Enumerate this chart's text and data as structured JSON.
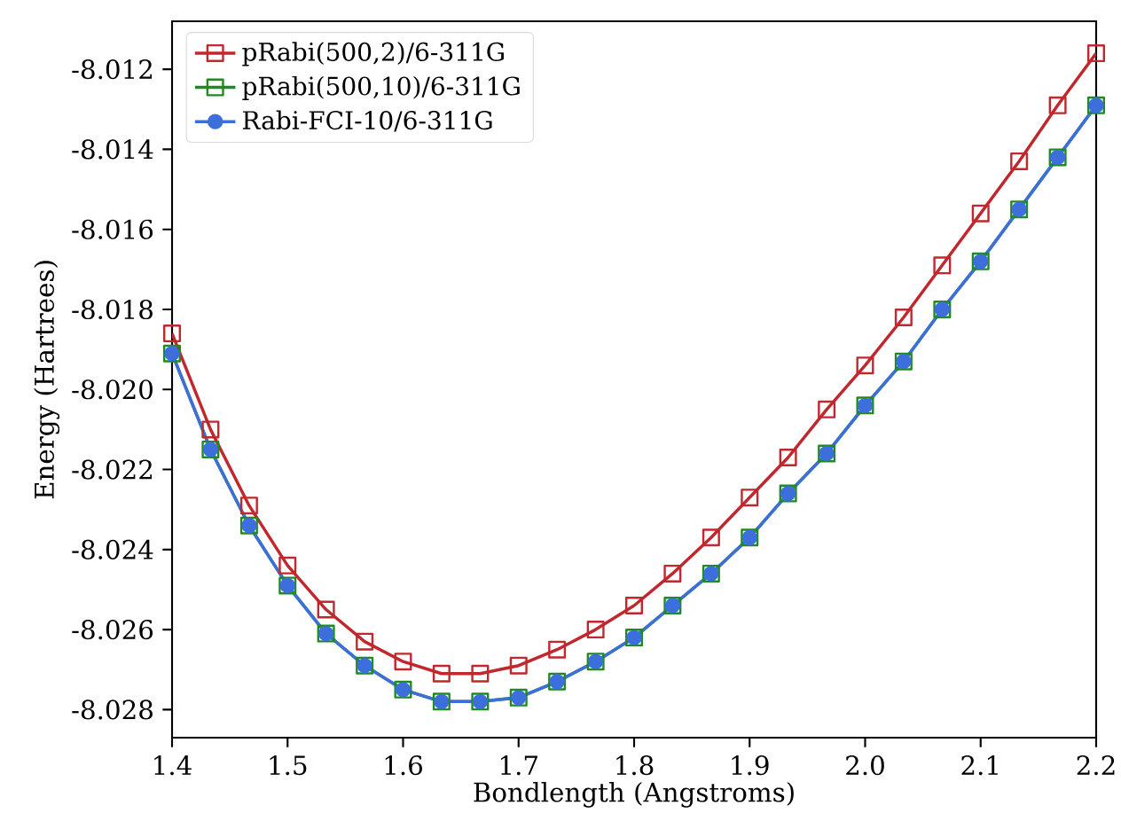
{
  "chart_data": {
    "type": "line",
    "xlabel": "Bondlength (Angstroms)",
    "ylabel": "Energy (Hartrees)",
    "x": [
      1.4,
      1.4333,
      1.4667,
      1.5,
      1.5333,
      1.5667,
      1.6,
      1.6333,
      1.6667,
      1.7,
      1.7333,
      1.7667,
      1.8,
      1.8333,
      1.8667,
      1.9,
      1.9333,
      1.9667,
      2.0,
      2.0333,
      2.0667,
      2.1,
      2.1333,
      2.1667,
      2.2
    ],
    "series": [
      {
        "name": "pRabi(500,2)/6-311G",
        "color": "#c0282d",
        "marker": "square",
        "values": [
          -8.0186,
          -8.021,
          -8.0229,
          -8.0244,
          -8.0255,
          -8.0263,
          -8.0268,
          -8.0271,
          -8.0271,
          -8.0269,
          -8.0265,
          -8.026,
          -8.0254,
          -8.0246,
          -8.0237,
          -8.0227,
          -8.0217,
          -8.0205,
          -8.0194,
          -8.0182,
          -8.0169,
          -8.0156,
          -8.0143,
          -8.0129,
          -8.0116
        ]
      },
      {
        "name": "pRabi(500,10)/6-311G",
        "color": "#1f8a1f",
        "marker": "square",
        "values": [
          -8.0191,
          -8.0215,
          -8.0234,
          -8.0249,
          -8.0261,
          -8.0269,
          -8.0275,
          -8.0278,
          -8.0278,
          -8.0277,
          -8.0273,
          -8.0268,
          -8.0262,
          -8.0254,
          -8.0246,
          -8.0237,
          -8.0226,
          -8.0216,
          -8.0204,
          -8.0193,
          -8.018,
          -8.0168,
          -8.0155,
          -8.0142,
          -8.0129
        ]
      },
      {
        "name": "Rabi-FCI-10/6-311G",
        "color": "#3d6fdc",
        "marker": "circle",
        "values": [
          -8.0191,
          -8.0215,
          -8.0234,
          -8.0249,
          -8.0261,
          -8.0269,
          -8.0275,
          -8.0278,
          -8.0278,
          -8.0277,
          -8.0273,
          -8.0268,
          -8.0262,
          -8.0254,
          -8.0246,
          -8.0237,
          -8.0226,
          -8.0216,
          -8.0204,
          -8.0193,
          -8.018,
          -8.0168,
          -8.0155,
          -8.0142,
          -8.0129
        ]
      }
    ],
    "xlim": [
      1.4,
      2.2
    ],
    "ylim": [
      -8.0287,
      -8.0108
    ],
    "xticks": [
      1.4,
      1.5,
      1.6,
      1.7,
      1.8,
      1.9,
      {
        "value": 2.0,
        "label": "2.0"
      },
      2.1,
      2.2
    ],
    "yticks": [
      -8.012,
      -8.014,
      -8.016,
      -8.018,
      {
        "value": -8.02,
        "label": "-8.020"
      },
      -8.022,
      -8.024,
      -8.026,
      -8.028
    ],
    "legend": "top left",
    "line_style": "solid"
  }
}
